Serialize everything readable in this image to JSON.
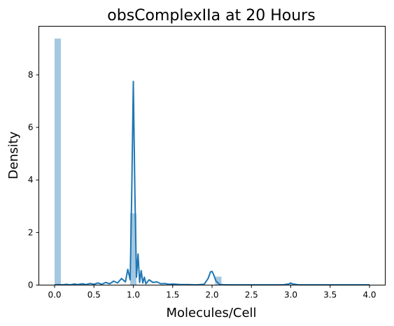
{
  "chart_data": {
    "type": "bar",
    "title": "obsComplexIIa at 20 Hours",
    "xlabel": "Molecules/Cell",
    "ylabel": "Density",
    "xlim": [
      -0.2,
      4.2
    ],
    "ylim": [
      0,
      9.85
    ],
    "xticks": [
      "0.0",
      "0.5",
      "1.0",
      "1.5",
      "2.0",
      "2.5",
      "3.0",
      "3.5",
      "4.0"
    ],
    "yticks": [
      "0",
      "2",
      "4",
      "6",
      "8"
    ],
    "grid": false,
    "colors": {
      "bars": "#a5c8e1",
      "kde": "#1f77b4"
    },
    "histogram": [
      {
        "x0": 0.0,
        "x1": 0.08,
        "density": 9.38
      },
      {
        "x0": 0.96,
        "x1": 1.04,
        "density": 2.73
      },
      {
        "x0": 2.04,
        "x1": 2.12,
        "density": 0.32
      },
      {
        "x0": 2.96,
        "x1": 3.04,
        "density": 0.03
      }
    ],
    "kde": {
      "x": [
        0.0,
        0.05,
        0.1,
        0.15,
        0.2,
        0.25,
        0.3,
        0.35,
        0.4,
        0.45,
        0.5,
        0.55,
        0.6,
        0.65,
        0.7,
        0.75,
        0.8,
        0.85,
        0.9,
        0.93,
        0.96,
        0.98,
        1.0,
        1.02,
        1.04,
        1.06,
        1.08,
        1.1,
        1.12,
        1.14,
        1.16,
        1.2,
        1.25,
        1.3,
        1.35,
        1.4,
        1.45,
        1.5,
        1.6,
        1.7,
        1.8,
        1.9,
        1.95,
        1.98,
        2.0,
        2.02,
        2.05,
        2.1,
        2.2,
        2.5,
        2.9,
        2.97,
        3.0,
        3.03,
        3.1,
        3.5,
        4.0
      ],
      "density": [
        0.01,
        0.02,
        0.01,
        0.03,
        0.01,
        0.04,
        0.02,
        0.05,
        0.02,
        0.06,
        0.03,
        0.08,
        0.03,
        0.1,
        0.05,
        0.15,
        0.08,
        0.25,
        0.12,
        0.6,
        0.2,
        3.5,
        7.75,
        3.5,
        0.3,
        1.18,
        0.1,
        0.55,
        0.08,
        0.3,
        0.05,
        0.2,
        0.1,
        0.12,
        0.05,
        0.06,
        0.03,
        0.04,
        0.02,
        0.02,
        0.01,
        0.03,
        0.25,
        0.5,
        0.52,
        0.4,
        0.15,
        0.02,
        0.01,
        0.01,
        0.01,
        0.04,
        0.08,
        0.04,
        0.01,
        0.01,
        0.01
      ]
    }
  }
}
